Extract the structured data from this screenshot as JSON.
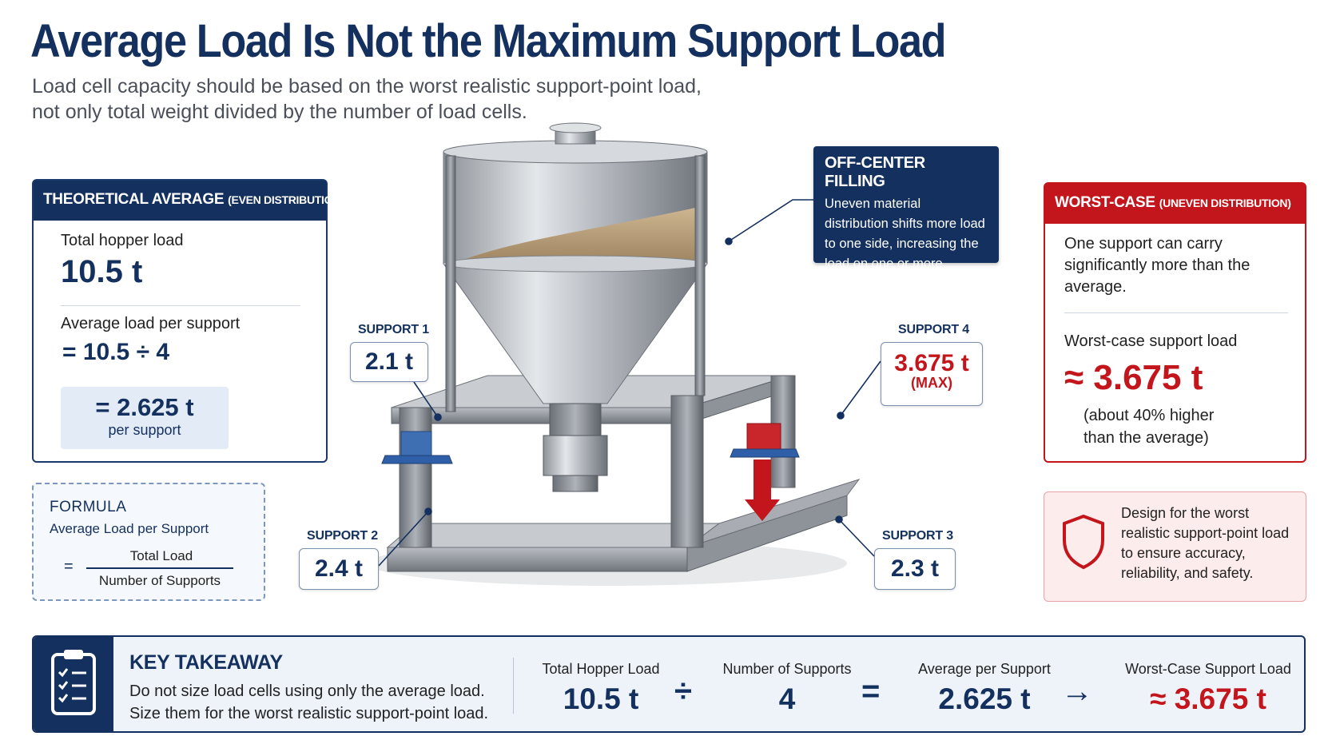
{
  "title": "Average Load Is Not the Maximum Support Load",
  "subtitle_line1": "Load cell capacity should be based on the worst realistic support-point load,",
  "subtitle_line2": "not only total weight divided by the number of load cells.",
  "theoretical": {
    "header": "THEORETICAL AVERAGE",
    "header_note": "(EVEN DISTRIBUTION)",
    "total_label": "Total hopper load",
    "total_value": "10.5 t",
    "avg_label": "Average load per support",
    "avg_calc": "= 10.5 ÷ 4",
    "avg_result": "= 2.625 t",
    "avg_unit": "per support"
  },
  "formula": {
    "heading": "FORMULA",
    "title": "Average Load per Support",
    "equals": "=",
    "numerator": "Total Load",
    "denominator": "Number of Supports"
  },
  "off_center": {
    "heading": "OFF-CENTER FILLING",
    "text": "Uneven material distribution shifts more load to one side, increasing the load on one or more supports."
  },
  "supports": [
    {
      "label": "SUPPORT 1",
      "value": "2.1 t"
    },
    {
      "label": "SUPPORT 2",
      "value": "2.4 t"
    },
    {
      "label": "SUPPORT 3",
      "value": "2.3 t"
    },
    {
      "label": "SUPPORT 4",
      "value": "3.675 t",
      "note": "(MAX)"
    }
  ],
  "worst_case": {
    "header": "WORST-CASE",
    "header_note": "(UNEVEN DISTRIBUTION)",
    "desc": "One support can carry significantly more than the average.",
    "label": "Worst-case support load",
    "value": "≈ 3.675 t",
    "note": "(about 40% higher than the average)"
  },
  "design_note": "Design for the worst realistic support-point load to ensure accuracy, reliability, and safety.",
  "takeaway": {
    "heading": "KEY TAKEAWAY",
    "line1": "Do not size load cells using only the average load.",
    "line2": "Size them for the worst realistic support-point load.",
    "items": [
      {
        "label": "Total Hopper Load",
        "value": "10.5 t"
      },
      {
        "label": "Number of Supports",
        "value": "4"
      },
      {
        "label": "Average per Support",
        "value": "2.625 t"
      },
      {
        "label": "Worst-Case Support Load",
        "value": "≈ 3.675 t"
      }
    ],
    "ops": [
      "÷",
      "=",
      "→"
    ]
  },
  "colors": {
    "navy": "#14305e",
    "red": "#c3161c",
    "light_blue": "#e3ebf6",
    "light_red": "#fcecec"
  },
  "icons": [
    "shield-icon",
    "checklist-icon",
    "hopper-illustration"
  ]
}
